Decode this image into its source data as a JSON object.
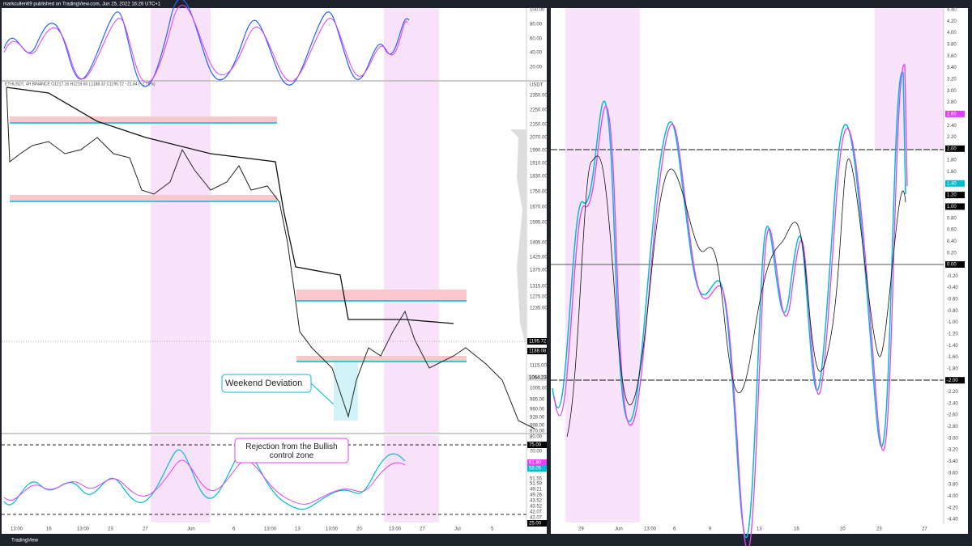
{
  "header": {
    "text": "markcullen69 published on TradingView.com, Jun 25, 2022 16:26 UTC+1"
  },
  "left": {
    "osc_top_axis": [
      "100.00",
      "80.00",
      "60.00",
      "40.00",
      "20.00"
    ],
    "legend": "ETHUSDT, 4H BINANCE O1217.16 H1219.60 L1188.32 C1195.72 −21.84 (−1.79%)",
    "price_axis": [
      "USDT",
      "2350.00",
      "2250.00",
      "2150.00",
      "2070.00",
      "1990.00",
      "1910.00",
      "1830.00",
      "1750.00",
      "1670.00",
      "1595.00",
      "1495.00",
      "1425.00",
      "1375.00",
      "1315.00",
      "1275.00",
      "1235.00",
      "1115.00",
      "1005.00",
      "995.00",
      "960.00",
      "928.00",
      "898.00",
      "870.00"
    ],
    "price_tags": [
      "1195.72",
      "1188.08",
      "1064.23"
    ],
    "osc_bottom_axis": [
      "80.00",
      "70.00",
      "51.55",
      "51.59",
      "49.21",
      "49.26",
      "43.52",
      "43.52",
      "42.07",
      "42.07"
    ],
    "osc_bottom_tags": [
      "75.00",
      "61.90",
      "58.05",
      "25.00"
    ],
    "x_axis": [
      "13:00",
      "16",
      "13:00",
      "23",
      "27",
      "Jun",
      "6",
      "13:00",
      "13",
      "13:00",
      "20",
      "13:00",
      "27",
      "Jul",
      "5"
    ],
    "annotations": [
      "Weekend Deviation",
      "Rejection from the Bullish control zone"
    ]
  },
  "right": {
    "axis": [
      "4.40",
      "4.20",
      "4.00",
      "3.80",
      "3.60",
      "3.40",
      "3.20",
      "3.00",
      "2.80",
      "2.60",
      "2.40",
      "2.20",
      "2.00",
      "1.80",
      "1.60",
      "1.40",
      "1.20",
      "1.00",
      "0.80",
      "0.60",
      "0.40",
      "0.20",
      "0.00",
      "-0.20",
      "-0.40",
      "-0.60",
      "-0.80",
      "-1.00",
      "-1.20",
      "-1.40",
      "-1.60",
      "-1.80",
      "-2.00",
      "-2.20",
      "-2.40",
      "-2.60",
      "-2.80",
      "-3.00",
      "-3.20",
      "-3.40",
      "-3.60",
      "-3.80",
      "-4.00",
      "-4.20",
      "-4.40"
    ],
    "x_axis": [
      "29",
      "Jun",
      "13:00",
      "6",
      "9",
      "13",
      "16",
      "20",
      "23",
      "27"
    ]
  },
  "footer": {
    "text": "TradingView"
  }
}
